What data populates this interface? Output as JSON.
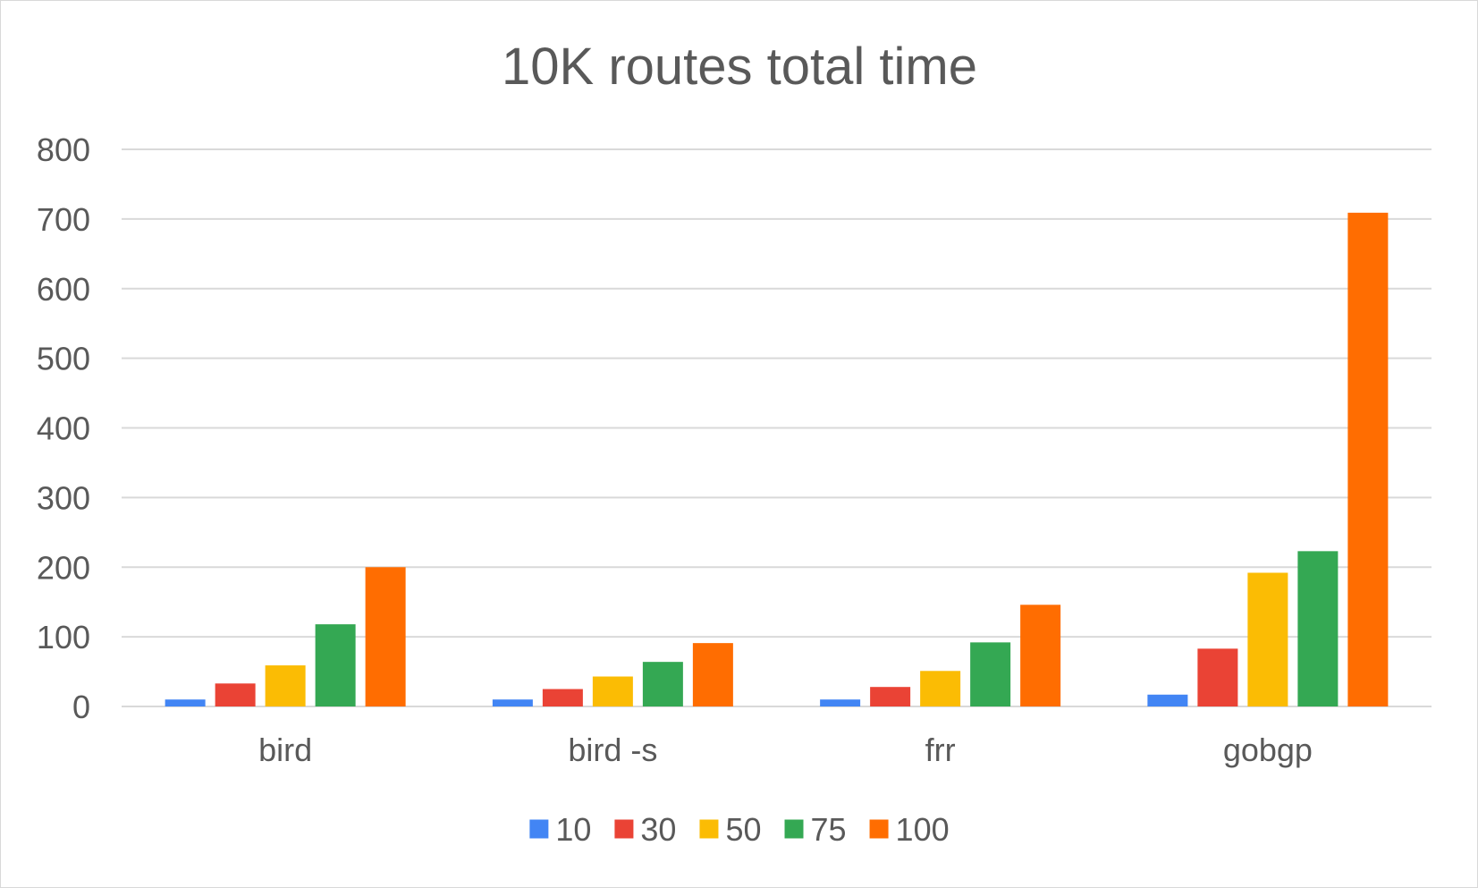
{
  "chart_data": {
    "type": "bar",
    "title": "10K routes total time",
    "categories": [
      "bird",
      "bird -s",
      "frr",
      "gobgp"
    ],
    "series": [
      {
        "name": "10",
        "color": "#4285f4",
        "values": [
          10,
          10,
          10,
          17
        ]
      },
      {
        "name": "30",
        "color": "#ea4335",
        "values": [
          33,
          25,
          28,
          83
        ]
      },
      {
        "name": "50",
        "color": "#fbbc04",
        "values": [
          59,
          43,
          51,
          192
        ]
      },
      {
        "name": "75",
        "color": "#34a853",
        "values": [
          118,
          64,
          92,
          223
        ]
      },
      {
        "name": "100",
        "color": "#ff6d01",
        "values": [
          200,
          91,
          146,
          709
        ]
      }
    ],
    "ylim": [
      0,
      800
    ],
    "yticks": [
      0,
      100,
      200,
      300,
      400,
      500,
      600,
      700,
      800
    ],
    "xlabel": "",
    "ylabel": "",
    "grid": true,
    "legend_position": "bottom"
  }
}
